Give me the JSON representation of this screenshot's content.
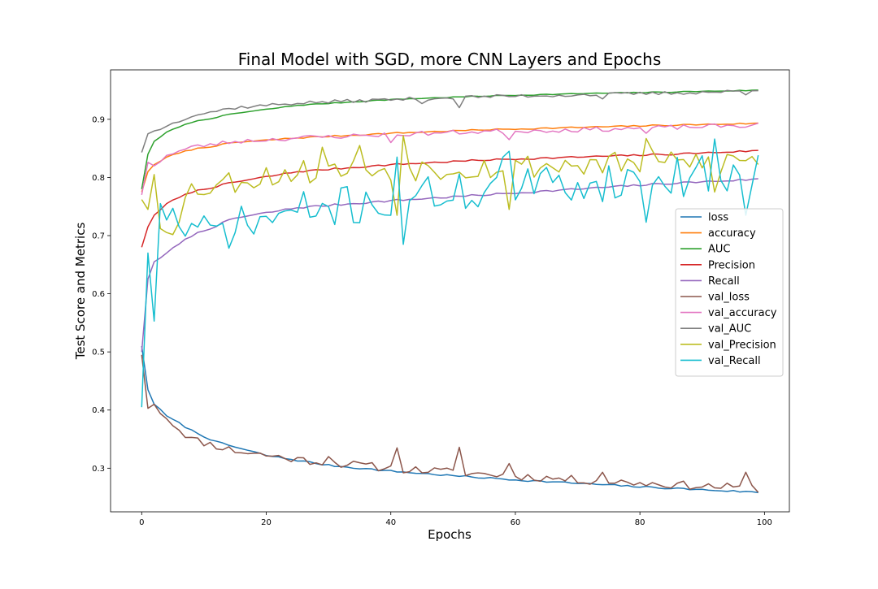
{
  "chart_data": {
    "type": "line",
    "title": "Final Model with SGD, more CNN Layers and Epochs",
    "xlabel": "Epochs",
    "ylabel": "Test Score and Metrics",
    "xlim": [
      -5,
      104
    ],
    "ylim": [
      0.225,
      0.985
    ],
    "x_ticks": [
      0,
      20,
      40,
      60,
      80,
      100
    ],
    "y_ticks": [
      0.3,
      0.4,
      0.5,
      0.6,
      0.7,
      0.8,
      0.9
    ],
    "legend_position": "center-right",
    "grid": false,
    "series": [
      {
        "name": "loss",
        "color": "#1f77b4",
        "kind": "smooth",
        "start": 0.51,
        "end": 0.258,
        "curve": [
          [
            1,
            0.435
          ],
          [
            2,
            0.41
          ],
          [
            4,
            0.39
          ],
          [
            8,
            0.365
          ],
          [
            12,
            0.345
          ],
          [
            20,
            0.322
          ],
          [
            30,
            0.305
          ],
          [
            40,
            0.295
          ],
          [
            50,
            0.287
          ],
          [
            60,
            0.28
          ],
          [
            70,
            0.274
          ],
          [
            80,
            0.268
          ],
          [
            90,
            0.263
          ],
          [
            100,
            0.258
          ]
        ],
        "noise": 0.0015
      },
      {
        "name": "accuracy",
        "color": "#ff7f0e",
        "kind": "smooth",
        "curve": [
          [
            0,
            0.775
          ],
          [
            1,
            0.81
          ],
          [
            2,
            0.822
          ],
          [
            4,
            0.835
          ],
          [
            8,
            0.848
          ],
          [
            15,
            0.86
          ],
          [
            25,
            0.868
          ],
          [
            40,
            0.876
          ],
          [
            55,
            0.882
          ],
          [
            70,
            0.886
          ],
          [
            85,
            0.89
          ],
          [
            99,
            0.893
          ]
        ],
        "noise": 0.0012
      },
      {
        "name": "AUC",
        "color": "#2ca02c",
        "kind": "smooth",
        "curve": [
          [
            0,
            0.78
          ],
          [
            1,
            0.84
          ],
          [
            2,
            0.862
          ],
          [
            4,
            0.878
          ],
          [
            8,
            0.895
          ],
          [
            15,
            0.91
          ],
          [
            25,
            0.924
          ],
          [
            40,
            0.934
          ],
          [
            55,
            0.94
          ],
          [
            70,
            0.944
          ],
          [
            85,
            0.947
          ],
          [
            99,
            0.95
          ]
        ],
        "noise": 0.0008
      },
      {
        "name": "Precision",
        "color": "#d62728",
        "kind": "smooth",
        "curve": [
          [
            0,
            0.68
          ],
          [
            1,
            0.715
          ],
          [
            2,
            0.735
          ],
          [
            4,
            0.755
          ],
          [
            8,
            0.775
          ],
          [
            15,
            0.792
          ],
          [
            25,
            0.81
          ],
          [
            40,
            0.822
          ],
          [
            55,
            0.83
          ],
          [
            70,
            0.835
          ],
          [
            85,
            0.84
          ],
          [
            99,
            0.846
          ]
        ],
        "noise": 0.0015
      },
      {
        "name": "Recall",
        "color": "#9467bd",
        "kind": "smooth",
        "curve": [
          [
            0,
            0.5
          ],
          [
            1,
            0.625
          ],
          [
            2,
            0.655
          ],
          [
            4,
            0.67
          ],
          [
            8,
            0.7
          ],
          [
            15,
            0.73
          ],
          [
            25,
            0.748
          ],
          [
            40,
            0.76
          ],
          [
            55,
            0.77
          ],
          [
            70,
            0.78
          ],
          [
            85,
            0.79
          ],
          [
            99,
            0.797
          ]
        ],
        "noise": 0.0018
      },
      {
        "name": "val_loss",
        "color": "#8c564b",
        "kind": "noisy",
        "curve": [
          [
            0,
            0.495
          ],
          [
            1,
            0.403
          ],
          [
            2,
            0.41
          ],
          [
            4,
            0.385
          ],
          [
            8,
            0.35
          ],
          [
            15,
            0.33
          ],
          [
            25,
            0.315
          ],
          [
            40,
            0.3
          ],
          [
            55,
            0.29
          ],
          [
            70,
            0.28
          ],
          [
            85,
            0.272
          ],
          [
            99,
            0.265
          ]
        ],
        "noise": 0.007,
        "seed": 11,
        "spikes": [
          [
            30,
            0.32
          ],
          [
            41,
            0.335
          ],
          [
            51,
            0.336
          ],
          [
            59,
            0.308
          ],
          [
            74,
            0.293
          ],
          [
            97,
            0.293
          ]
        ]
      },
      {
        "name": "val_accuracy",
        "color": "#e377c2",
        "kind": "noisy",
        "curve": [
          [
            0,
            0.77
          ],
          [
            1,
            0.826
          ],
          [
            2,
            0.82
          ],
          [
            4,
            0.838
          ],
          [
            8,
            0.852
          ],
          [
            15,
            0.862
          ],
          [
            25,
            0.868
          ],
          [
            40,
            0.874
          ],
          [
            55,
            0.879
          ],
          [
            70,
            0.882
          ],
          [
            85,
            0.886
          ],
          [
            99,
            0.89
          ]
        ],
        "noise": 0.004,
        "seed": 23,
        "spikes": [
          [
            40,
            0.86
          ],
          [
            42,
            0.872
          ],
          [
            59,
            0.865
          ],
          [
            81,
            0.876
          ]
        ]
      },
      {
        "name": "val_AUC",
        "color": "#7f7f7f",
        "kind": "noisy",
        "curve": [
          [
            0,
            0.843
          ],
          [
            1,
            0.875
          ],
          [
            2,
            0.88
          ],
          [
            4,
            0.888
          ],
          [
            8,
            0.907
          ],
          [
            15,
            0.92
          ],
          [
            25,
            0.928
          ],
          [
            40,
            0.934
          ],
          [
            55,
            0.939
          ],
          [
            70,
            0.942
          ],
          [
            85,
            0.945
          ],
          [
            99,
            0.949
          ]
        ],
        "noise": 0.003,
        "seed": 37,
        "spikes": [
          [
            45,
            0.927
          ],
          [
            51,
            0.92
          ],
          [
            74,
            0.935
          ],
          [
            97,
            0.942
          ]
        ]
      },
      {
        "name": "val_Precision",
        "color": "#bcbd22",
        "kind": "noisy",
        "curve": [
          [
            0,
            0.762
          ],
          [
            1,
            0.745
          ],
          [
            2,
            0.805
          ],
          [
            3,
            0.712
          ],
          [
            5,
            0.72
          ],
          [
            8,
            0.78
          ],
          [
            15,
            0.795
          ],
          [
            25,
            0.81
          ],
          [
            40,
            0.815
          ],
          [
            55,
            0.818
          ],
          [
            70,
            0.822
          ],
          [
            85,
            0.825
          ],
          [
            99,
            0.83
          ]
        ],
        "noise": 0.022,
        "seed": 53,
        "spikes": [
          [
            29,
            0.852
          ],
          [
            35,
            0.855
          ],
          [
            41,
            0.735
          ],
          [
            42,
            0.872
          ],
          [
            59,
            0.745
          ],
          [
            81,
            0.867
          ],
          [
            92,
            0.775
          ]
        ]
      },
      {
        "name": "val_Recall",
        "color": "#17becf",
        "kind": "noisy",
        "curve": [
          [
            0,
            0.405
          ],
          [
            1,
            0.67
          ],
          [
            2,
            0.553
          ],
          [
            3,
            0.755
          ],
          [
            6,
            0.72
          ],
          [
            9,
            0.7
          ],
          [
            15,
            0.715
          ],
          [
            25,
            0.74
          ],
          [
            40,
            0.762
          ],
          [
            55,
            0.778
          ],
          [
            70,
            0.79
          ],
          [
            85,
            0.8
          ],
          [
            99,
            0.81
          ]
        ],
        "noise": 0.035,
        "seed": 71,
        "spikes": [
          [
            40,
            0.735
          ],
          [
            41,
            0.835
          ],
          [
            42,
            0.685
          ],
          [
            58,
            0.835
          ],
          [
            59,
            0.845
          ],
          [
            81,
            0.723
          ],
          [
            92,
            0.866
          ],
          [
            97,
            0.735
          ]
        ]
      }
    ]
  }
}
